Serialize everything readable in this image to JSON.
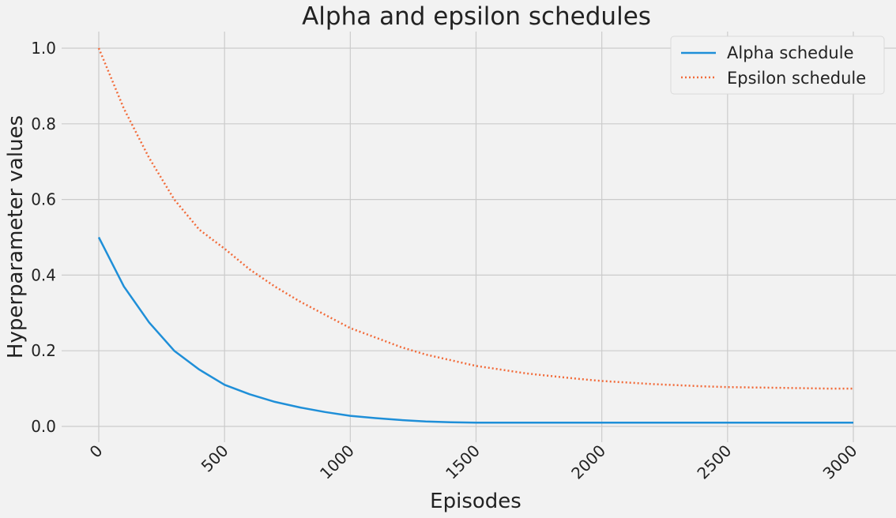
{
  "chart_data": {
    "type": "line",
    "title": "Alpha and epsilon schedules",
    "xlabel": "Episodes",
    "ylabel": "Hyperparameter values",
    "xlim": [
      0,
      3000
    ],
    "ylim": [
      0.0,
      1.0
    ],
    "x_ticks": [
      "0",
      "500",
      "1000",
      "1500",
      "2000",
      "2500",
      "3000"
    ],
    "y_ticks": [
      "0.0",
      "0.2",
      "0.4",
      "0.6",
      "0.8",
      "1.0"
    ],
    "x_tick_rotation": "45 degrees",
    "grid": true,
    "legend_position": "top-right",
    "x": [
      0,
      100,
      200,
      300,
      400,
      500,
      600,
      700,
      800,
      900,
      1000,
      1100,
      1200,
      1300,
      1400,
      1500,
      1600,
      1700,
      1800,
      1900,
      2000,
      2100,
      2200,
      2300,
      2400,
      2500,
      2600,
      2700,
      2800,
      2900,
      3000
    ],
    "series": [
      {
        "name": "Alpha schedule",
        "color": "#1f8fd8",
        "style": "solid",
        "values": [
          0.5,
          0.37,
          0.275,
          0.2,
          0.15,
          0.11,
          0.085,
          0.065,
          0.05,
          0.038,
          0.028,
          0.022,
          0.017,
          0.013,
          0.011,
          0.01,
          0.01,
          0.01,
          0.01,
          0.01,
          0.01,
          0.01,
          0.01,
          0.01,
          0.01,
          0.01,
          0.01,
          0.01,
          0.01,
          0.01,
          0.01
        ]
      },
      {
        "name": "Epsilon schedule",
        "color": "#f26b3a",
        "style": "dotted",
        "values": [
          1.0,
          0.84,
          0.71,
          0.6,
          0.52,
          0.47,
          0.415,
          0.37,
          0.33,
          0.295,
          0.26,
          0.235,
          0.21,
          0.19,
          0.175,
          0.16,
          0.15,
          0.14,
          0.133,
          0.126,
          0.12,
          0.116,
          0.112,
          0.109,
          0.106,
          0.104,
          0.103,
          0.102,
          0.101,
          0.1,
          0.1
        ]
      }
    ]
  }
}
